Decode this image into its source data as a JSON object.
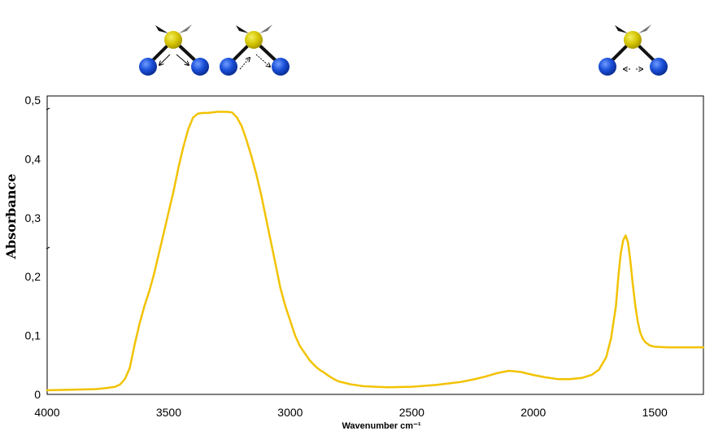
{
  "chart_data": {
    "type": "line",
    "xlabel": "Wavenumber cm⁻¹",
    "ylabel": "Absorbance",
    "xlim": [
      4000,
      1300
    ],
    "ylim": [
      0,
      0.5
    ],
    "x_reversed": true,
    "grid": false,
    "x_ticks": [
      4000,
      3500,
      3000,
      2500,
      2000,
      1500
    ],
    "x_tick_labels": [
      "4000",
      "3500",
      "3000",
      "2500",
      "2000",
      "1500"
    ],
    "y_ticks": [
      0,
      0.1,
      0.2,
      0.3,
      0.4,
      0.5
    ],
    "y_tick_labels": [
      "0",
      "0,1",
      "0,2",
      "0,3",
      "0,4",
      "0,5"
    ],
    "line_color": "#f2c200",
    "series": [
      {
        "x": [
          4000,
          3900,
          3800,
          3750,
          3720,
          3700,
          3680,
          3660,
          3640,
          3620,
          3600,
          3580,
          3560,
          3540,
          3520,
          3500,
          3480,
          3460,
          3440,
          3420,
          3400,
          3380,
          3360,
          3340,
          3320,
          3300,
          3280,
          3260,
          3240,
          3220,
          3200,
          3180,
          3160,
          3140,
          3120,
          3100,
          3080,
          3060,
          3040,
          3020,
          3000,
          2980,
          2960,
          2940,
          2920,
          2900,
          2880,
          2860,
          2840,
          2820,
          2800,
          2750,
          2700,
          2650,
          2600,
          2500,
          2400,
          2300,
          2250,
          2200,
          2150,
          2100,
          2050,
          2000,
          1950,
          1900,
          1850,
          1800,
          1760,
          1730,
          1700,
          1680,
          1660,
          1650,
          1640,
          1630,
          1620,
          1610,
          1600,
          1590,
          1580,
          1570,
          1560,
          1550,
          1540,
          1520,
          1500,
          1450,
          1400,
          1350,
          1300
        ],
        "y": [
          0.007,
          0.008,
          0.009,
          0.011,
          0.013,
          0.017,
          0.026,
          0.045,
          0.085,
          0.12,
          0.15,
          0.175,
          0.205,
          0.24,
          0.275,
          0.31,
          0.345,
          0.385,
          0.42,
          0.45,
          0.47,
          0.477,
          0.478,
          0.478,
          0.479,
          0.48,
          0.48,
          0.48,
          0.479,
          0.471,
          0.456,
          0.432,
          0.405,
          0.375,
          0.34,
          0.3,
          0.26,
          0.22,
          0.18,
          0.15,
          0.125,
          0.1,
          0.082,
          0.07,
          0.058,
          0.049,
          0.042,
          0.037,
          0.031,
          0.026,
          0.022,
          0.017,
          0.014,
          0.013,
          0.012,
          0.013,
          0.016,
          0.021,
          0.025,
          0.03,
          0.036,
          0.04,
          0.038,
          0.033,
          0.029,
          0.026,
          0.026,
          0.028,
          0.033,
          0.042,
          0.063,
          0.095,
          0.15,
          0.2,
          0.24,
          0.262,
          0.27,
          0.258,
          0.225,
          0.185,
          0.15,
          0.123,
          0.105,
          0.095,
          0.089,
          0.083,
          0.081,
          0.08,
          0.08,
          0.08,
          0.08
        ]
      }
    ],
    "molecule_icons": [
      "symmetric-stretch-icon",
      "asymmetric-stretch-icon",
      "bending-mode-icon"
    ]
  }
}
